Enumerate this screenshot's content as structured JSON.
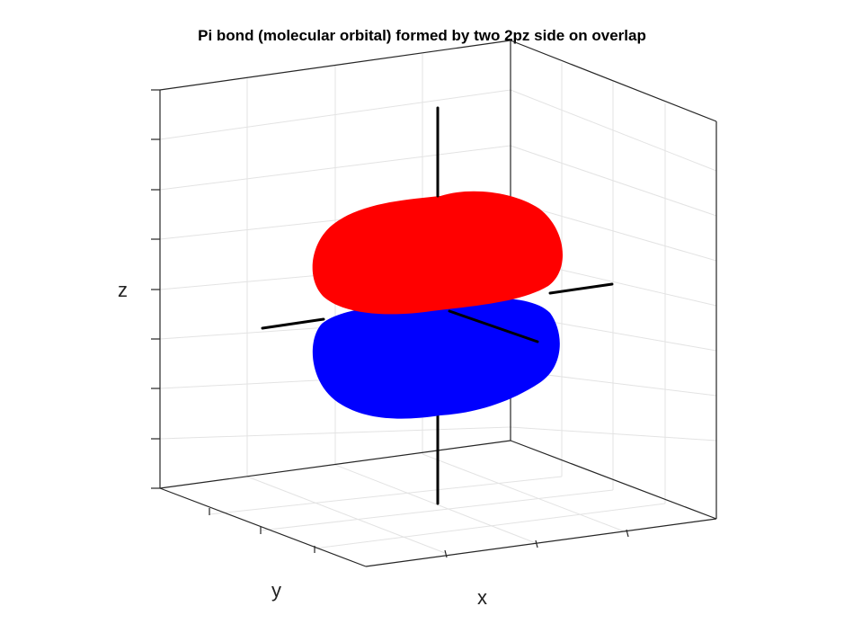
{
  "figure": {
    "title": "Pi bond (molecular orbital) formed by two 2pz side on overlap",
    "axes": {
      "x_label": "x",
      "y_label": "y",
      "z_label": "z"
    },
    "lobes": [
      {
        "name": "upper-lobe",
        "color": "#ff0000"
      },
      {
        "name": "lower-lobe",
        "color": "#0000ff"
      }
    ],
    "colors": {
      "box": "#262626",
      "grid": "#e3e3e3",
      "axis_lines": "#000000",
      "background": "#ffffff"
    }
  }
}
